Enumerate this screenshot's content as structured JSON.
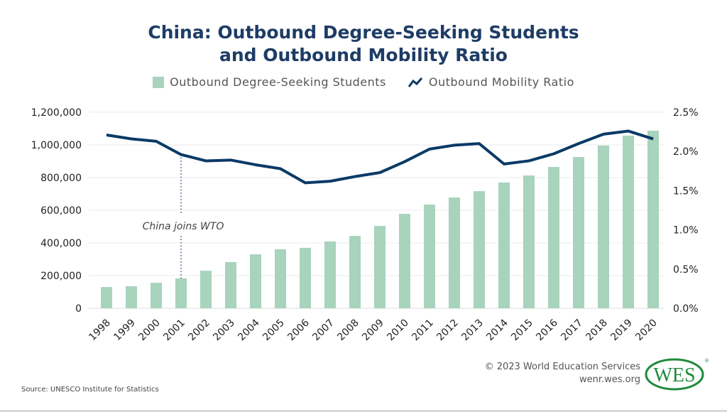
{
  "chart_data": {
    "type": "bar+line",
    "title_line1": "China: Outbound Degree-Seeking Students",
    "title_line2": "and Outbound Mobility Ratio",
    "categories": [
      "1998",
      "1999",
      "2000",
      "2001",
      "2002",
      "2003",
      "2004",
      "2005",
      "2006",
      "2007",
      "2008",
      "2009",
      "2010",
      "2011",
      "2012",
      "2013",
      "2014",
      "2015",
      "2016",
      "2017",
      "2018",
      "2019",
      "2020"
    ],
    "series": [
      {
        "name": "Outbound Degree-Seeking Students",
        "type": "bar",
        "axis": "left",
        "color": "#a8d3bc",
        "values": [
          130000,
          135000,
          156000,
          183000,
          230000,
          283000,
          330000,
          361000,
          370000,
          409000,
          443000,
          504000,
          578000,
          635000,
          678000,
          717000,
          770000,
          813000,
          865000,
          926000,
          996000,
          1057000,
          1087000
        ]
      },
      {
        "name": "Outbound Mobility Ratio",
        "type": "line",
        "axis": "right",
        "unit": "%",
        "color": "#0a3a66",
        "values": [
          2.21,
          2.16,
          2.13,
          1.96,
          1.88,
          1.89,
          1.83,
          1.78,
          1.6,
          1.62,
          1.68,
          1.73,
          1.87,
          2.03,
          2.08,
          2.1,
          1.84,
          1.88,
          1.97,
          2.1,
          2.22,
          2.26,
          2.16
        ]
      }
    ],
    "left_axis": {
      "ylim": [
        0,
        1200000
      ],
      "ticks": [
        "0",
        "200,000",
        "400,000",
        "600,000",
        "800,000",
        "1,000,000",
        "1,200,000"
      ]
    },
    "right_axis": {
      "ylim": [
        0,
        2.5
      ],
      "ticks": [
        "0.0%",
        "0.5%",
        "1.0%",
        "1.5%",
        "2.0%",
        "2.5%"
      ]
    },
    "grid": true,
    "legend_position": "top",
    "annotation": {
      "text": "China joins WTO",
      "year": "2001"
    }
  },
  "footer": {
    "source": "Source: UNESCO Institute for Statistics",
    "copyright": "© 2023 World Education Services",
    "url": "wenr.wes.org",
    "logo_text": "WES",
    "logo_color": "#1e8a3c"
  }
}
